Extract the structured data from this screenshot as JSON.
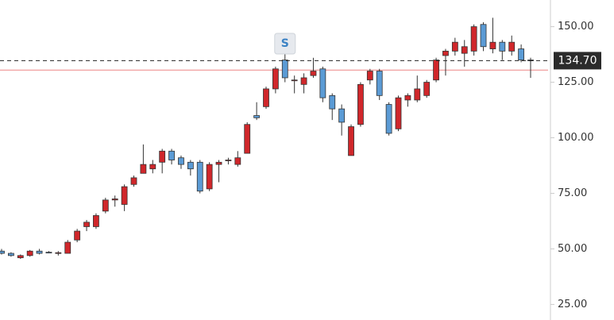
{
  "chart_data": {
    "type": "candlestick",
    "up_color": "#d0272b",
    "down_color": "#5b9bd5",
    "wick_color": "#333333",
    "open": [
      49,
      48,
      46,
      47,
      49,
      48.5,
      48,
      48,
      54,
      60,
      60,
      67,
      72,
      70,
      79,
      84,
      86,
      89,
      94,
      91,
      89,
      89,
      77,
      88,
      90,
      88,
      93,
      110,
      114,
      122,
      135,
      126,
      124,
      128,
      131,
      119,
      113,
      92,
      106,
      126,
      130,
      115,
      104,
      117,
      117,
      119,
      126,
      137,
      139,
      138,
      139,
      151,
      140,
      143,
      139,
      140,
      135
    ],
    "high": [
      50,
      48.5,
      47.5,
      49.5,
      50,
      49,
      49,
      54,
      59,
      63,
      66,
      73,
      74,
      79,
      83,
      97,
      90,
      95,
      95,
      92,
      90,
      90,
      89,
      90,
      91,
      94,
      107,
      116,
      123,
      132,
      138,
      128,
      129,
      136,
      132,
      120,
      115,
      106,
      125,
      131,
      131,
      116,
      119,
      120,
      128,
      126,
      136,
      140,
      145,
      144,
      151,
      152,
      154,
      144,
      146,
      142,
      136
    ],
    "low": [
      47.5,
      46.5,
      45.5,
      46.5,
      47.5,
      48,
      47,
      48,
      53,
      58,
      59,
      66,
      69,
      67,
      78,
      84,
      84,
      84,
      88,
      86,
      83,
      75,
      76,
      80,
      88,
      87,
      93,
      108,
      113,
      120,
      125,
      120,
      120,
      127,
      116,
      108,
      101,
      92,
      105,
      124,
      117,
      101,
      103,
      114,
      116,
      118,
      125,
      128,
      137,
      132,
      137,
      139,
      138,
      135,
      137,
      134,
      127
    ],
    "close": [
      48,
      47,
      47,
      49,
      48,
      48.2,
      48.3,
      53,
      58,
      62,
      65,
      72,
      72.5,
      78,
      82,
      88,
      88,
      94,
      90,
      88,
      86,
      76,
      88,
      89,
      90,
      91,
      106,
      109,
      122,
      131,
      127,
      126,
      127,
      130,
      118,
      113,
      107,
      105,
      124,
      130,
      119,
      102,
      118,
      119,
      122,
      125,
      135,
      139,
      143,
      141,
      150,
      141,
      143,
      139,
      143,
      135,
      134.7
    ],
    "ylim": [
      18,
      162
    ],
    "yticks": [
      {
        "value": 25,
        "label": "25.00"
      },
      {
        "value": 50,
        "label": "50.00"
      },
      {
        "value": 75,
        "label": "75.00"
      },
      {
        "value": 100,
        "label": "100.00"
      },
      {
        "value": 125,
        "label": "125.00"
      },
      {
        "value": 150,
        "label": "150.00"
      }
    ],
    "price_line": {
      "value": 134.7,
      "label": "134.70"
    },
    "reference_line": {
      "value": 130.4,
      "color": "#f2a9a9"
    },
    "markers": [
      {
        "index": 30,
        "label": "S"
      }
    ]
  }
}
